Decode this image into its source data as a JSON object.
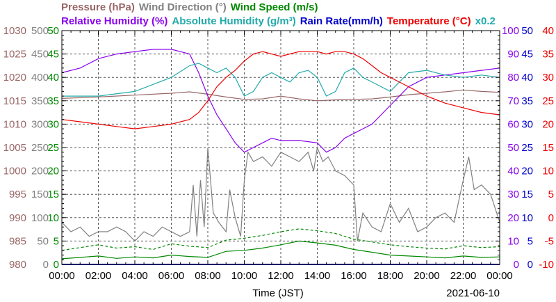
{
  "legend_row1": [
    {
      "label": "Pressure (hPa)",
      "color": "#996666"
    },
    {
      "label": "Wind Direction (°)",
      "color": "#808080"
    },
    {
      "label": "Wind Speed (m/s)",
      "color": "#008800"
    }
  ],
  "legend_row2": [
    {
      "label": "Relative Humidity (%)",
      "color": "#8800ee"
    },
    {
      "label": "Absolute Humidity (g/m³)",
      "color": "#22aaaa"
    },
    {
      "label": "Rain Rate(mm/h)",
      "color": "#0000cc"
    },
    {
      "label": "Temperature (°C)",
      "color": "#ee0000"
    },
    {
      "label": "x0.2",
      "color": "#22aaaa"
    }
  ],
  "xlabel": "Time (JST)",
  "date": "2021-06-10",
  "chart_data": {
    "type": "line",
    "x_ticks": [
      "00:00",
      "02:00",
      "04:00",
      "06:00",
      "08:00",
      "10:00",
      "12:00",
      "14:00",
      "16:00",
      "18:00",
      "20:00",
      "22:00",
      "00:00"
    ],
    "xlim": [
      0,
      24
    ],
    "grid": true,
    "axes": {
      "pressure": {
        "range": [
          980,
          1030
        ],
        "ticks": [
          "1030",
          "1025",
          "1020",
          "1015",
          "1010",
          "1005",
          "1000",
          "995",
          "990",
          "985",
          "980"
        ],
        "color": "#996666"
      },
      "wind_direction": {
        "range": [
          0,
          500
        ],
        "ticks": [
          "500",
          "450",
          "400",
          "350",
          "300",
          "250",
          "200",
          "150",
          "100",
          "50",
          "0"
        ],
        "color": "#808080"
      },
      "wind_speed": {
        "range": [
          0,
          50
        ],
        "ticks": [
          "50",
          "45",
          "40",
          "35",
          "30",
          "25",
          "20",
          "15",
          "10",
          "5",
          "0"
        ],
        "color": "#008800"
      },
      "relative_humidity": {
        "range": [
          0,
          100
        ],
        "ticks": [
          "100",
          "90",
          "80",
          "70",
          "60",
          "50",
          "40",
          "30",
          "20",
          "10",
          "0"
        ],
        "color": "#8800ee"
      },
      "rain_rate": {
        "range": [
          0,
          50
        ],
        "ticks": [
          "50",
          "45",
          "40",
          "35",
          "30",
          "25",
          "20",
          "15",
          "10",
          "5",
          "0"
        ],
        "color": "#0000cc"
      },
      "temperature": {
        "range": [
          -10,
          40
        ],
        "ticks": [
          "40",
          "35",
          "30",
          "25",
          "20",
          "15",
          "10",
          "5",
          "0",
          "-5",
          "-10"
        ],
        "color": "#ee0000"
      }
    },
    "series": [
      {
        "name": "Pressure (hPa)",
        "axis": "pressure",
        "color": "#996666",
        "x": [
          0,
          2,
          4,
          6,
          7,
          8,
          9,
          10,
          11,
          12,
          13,
          14,
          15,
          16,
          17,
          18,
          19,
          20,
          21,
          22,
          23,
          24
        ],
        "y": [
          1015.5,
          1015.8,
          1016.2,
          1016.6,
          1016.9,
          1016.4,
          1015.8,
          1015.3,
          1015.4,
          1016.0,
          1015.4,
          1015.0,
          1015.2,
          1015.3,
          1015.4,
          1015.8,
          1016.3,
          1016.6,
          1016.9,
          1017.3,
          1017.0,
          1016.8
        ]
      },
      {
        "name": "Wind Direction (°)",
        "axis": "wind_direction",
        "color": "#808080",
        "x": [
          0,
          0.5,
          1,
          1.5,
          2,
          2.5,
          3,
          3.5,
          4,
          4.5,
          5,
          5.5,
          6,
          6.5,
          7,
          7.2,
          7.4,
          7.6,
          7.8,
          8,
          8.3,
          8.6,
          9,
          9.2,
          9.5,
          9.8,
          10,
          10.2,
          10.5,
          11,
          11.5,
          12,
          12.5,
          13,
          13.5,
          13.8,
          14,
          14.3,
          14.6,
          15,
          15.5,
          16,
          16.2,
          16.5,
          17,
          17.5,
          18,
          18.5,
          19,
          19.5,
          20,
          20.5,
          21,
          21.5,
          22,
          22.3,
          22.6,
          23,
          23.5,
          24
        ],
        "y": [
          90,
          70,
          80,
          60,
          70,
          70,
          80,
          70,
          50,
          70,
          60,
          80,
          70,
          60,
          70,
          170,
          60,
          180,
          80,
          250,
          110,
          90,
          70,
          160,
          100,
          60,
          180,
          240,
          220,
          230,
          210,
          240,
          230,
          220,
          240,
          200,
          250,
          220,
          230,
          200,
          190,
          170,
          50,
          110,
          80,
          70,
          130,
          90,
          120,
          70,
          80,
          100,
          110,
          90,
          180,
          230,
          160,
          170,
          150,
          90
        ]
      },
      {
        "name": "Wind Speed (m/s)",
        "axis": "wind_speed",
        "color": "#008800",
        "x": [
          0,
          1,
          2,
          3,
          4,
          5,
          6,
          7,
          8,
          9,
          10,
          11,
          12,
          13,
          14,
          15,
          16,
          17,
          18,
          19,
          20,
          21,
          22,
          23,
          24
        ],
        "y": [
          1.2,
          1.5,
          1.8,
          1.3,
          1.6,
          1.4,
          2.0,
          1.7,
          1.5,
          2.8,
          3.0,
          3.5,
          4.2,
          5.0,
          4.6,
          4.1,
          3.2,
          2.6,
          2.0,
          1.8,
          1.6,
          1.4,
          1.8,
          1.5,
          1.6
        ]
      },
      {
        "name": "Wind Speed gust (m/s)",
        "axis": "wind_speed",
        "color": "#008800",
        "dashed": true,
        "x": [
          0,
          1,
          2,
          3,
          4,
          5,
          6,
          7,
          8,
          9,
          10,
          11,
          12,
          13,
          14,
          15,
          16,
          17,
          18,
          19,
          20,
          21,
          22,
          23,
          24
        ],
        "y": [
          3.0,
          3.6,
          4.2,
          3.5,
          3.8,
          3.2,
          4.4,
          3.9,
          3.6,
          5.2,
          5.6,
          6.2,
          7.0,
          7.6,
          7.2,
          6.6,
          5.4,
          4.8,
          4.2,
          3.8,
          3.5,
          3.3,
          4.0,
          3.6,
          3.8
        ]
      },
      {
        "name": "Relative Humidity (%)",
        "axis": "relative_humidity",
        "color": "#8800ee",
        "x": [
          0,
          1,
          2,
          3,
          4,
          5,
          6,
          6.5,
          7,
          7.5,
          8,
          8.5,
          9,
          9.5,
          10,
          10.5,
          11,
          11.5,
          12,
          13,
          14,
          14.5,
          15,
          15.5,
          16,
          16.5,
          17,
          18,
          19,
          20,
          21,
          22,
          23,
          24
        ],
        "y": [
          82,
          84,
          88,
          90,
          91,
          92,
          92,
          91,
          90,
          82,
          72,
          64,
          58,
          52,
          48,
          50,
          52,
          54,
          53,
          53,
          52,
          48,
          50,
          54,
          56,
          58,
          60,
          68,
          76,
          80,
          81,
          82,
          83,
          84
        ]
      },
      {
        "name": "Absolute Humidity x0.2 (g/m³)",
        "axis": "relative_humidity",
        "color": "#22aaaa",
        "x": [
          0,
          2,
          4,
          5,
          6,
          7,
          7.5,
          8,
          8.5,
          9,
          9.5,
          10,
          10.5,
          11,
          11.5,
          12,
          12.5,
          13,
          13.5,
          14,
          14.5,
          15,
          15.5,
          16,
          16.5,
          17,
          17.5,
          18,
          18.5,
          19,
          20,
          21,
          22,
          23,
          24
        ],
        "y": [
          72,
          72,
          74,
          77,
          80,
          85,
          86,
          84,
          82,
          84,
          80,
          72,
          74,
          80,
          82,
          80,
          78,
          82,
          83,
          80,
          72,
          74,
          82,
          84,
          80,
          78,
          76,
          74,
          78,
          82,
          83,
          81,
          80,
          81,
          80
        ]
      },
      {
        "name": "Rain Rate(mm/h)",
        "axis": "rain_rate",
        "color": "#0000cc",
        "x": [
          0,
          24
        ],
        "y": [
          0,
          0
        ]
      },
      {
        "name": "Temperature (°C)",
        "axis": "temperature",
        "color": "#ee0000",
        "x": [
          0,
          1,
          2,
          3,
          4,
          5,
          6,
          7,
          7.5,
          8,
          8.5,
          9,
          9.5,
          10,
          10.5,
          11,
          11.5,
          12,
          12.5,
          13,
          14,
          14.5,
          15,
          15.5,
          16,
          16.5,
          17,
          17.5,
          18,
          18.5,
          19,
          20,
          21,
          22,
          23,
          24
        ],
        "y": [
          21,
          20.5,
          20,
          19.5,
          19,
          19.5,
          20,
          21,
          22.5,
          25,
          28,
          30,
          31.5,
          33.5,
          35,
          35.5,
          35,
          34.5,
          35,
          35.5,
          35.5,
          35,
          35.5,
          35.5,
          35,
          34,
          32.5,
          31,
          30,
          29,
          28,
          26,
          24.5,
          23.5,
          22.5,
          22
        ]
      }
    ]
  }
}
